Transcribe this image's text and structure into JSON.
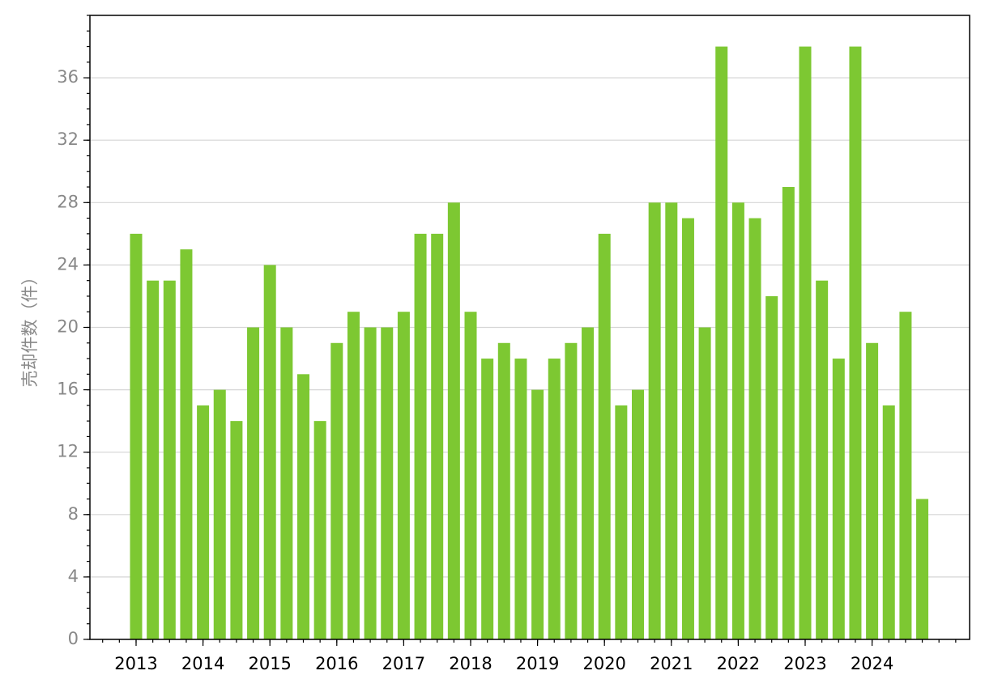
{
  "chart_data": {
    "type": "bar",
    "y_label": "売却件数（件）",
    "categories": [
      "2013",
      null,
      null,
      null,
      "2014",
      null,
      null,
      null,
      "2015",
      null,
      null,
      null,
      "2016",
      null,
      null,
      null,
      "2017",
      null,
      null,
      null,
      "2018",
      null,
      null,
      null,
      "2019",
      null,
      null,
      null,
      "2020",
      null,
      null,
      null,
      "2021",
      null,
      null,
      null,
      "2022",
      null,
      null,
      null,
      "2023",
      null,
      null,
      null,
      "2024",
      null,
      null,
      null
    ],
    "values": [
      26,
      23,
      23,
      25,
      15,
      16,
      14,
      20,
      24,
      20,
      17,
      14,
      19,
      21,
      20,
      20,
      21,
      26,
      26,
      28,
      21,
      18,
      19,
      18,
      16,
      18,
      19,
      20,
      26,
      15,
      16,
      28,
      28,
      27,
      20,
      38,
      28,
      27,
      22,
      29,
      38,
      23,
      18,
      38,
      19,
      15,
      21,
      9
    ],
    "color": "#7dc832",
    "ylim": [
      0,
      40
    ],
    "yticks": [
      0,
      4,
      8,
      12,
      16,
      20,
      24,
      28,
      32,
      36
    ],
    "grid": true
  }
}
